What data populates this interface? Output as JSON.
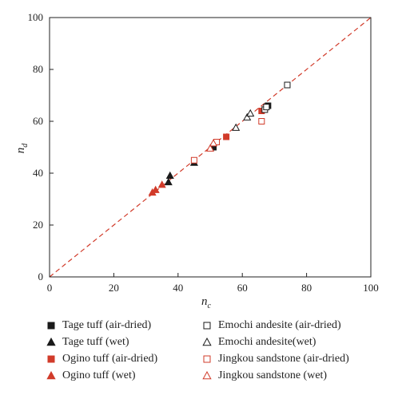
{
  "chart_data": {
    "type": "scatter",
    "xlabel": "n",
    "xlabel_sub": "c",
    "ylabel": "n",
    "ylabel_sub": "d",
    "xlim": [
      0,
      100
    ],
    "ylim": [
      0,
      100
    ],
    "x_ticks": [
      "0",
      "20",
      "40",
      "60",
      "80",
      "100"
    ],
    "y_ticks": [
      "0",
      "20",
      "40",
      "60",
      "80",
      "100"
    ],
    "grid": false,
    "reference_line": {
      "from": [
        0,
        0
      ],
      "to": [
        100,
        100
      ],
      "style": "dashed",
      "color": "#d13b2a"
    },
    "legend_position": "bottom",
    "series": [
      {
        "name": "Tage tuff (air-dried)",
        "marker": "square",
        "filled": true,
        "color": "#1a1a1a",
        "points": [
          [
            51,
            50
          ],
          [
            68,
            66
          ]
        ]
      },
      {
        "name": "Tage tuff (wet)",
        "marker": "triangle",
        "filled": true,
        "color": "#1a1a1a",
        "points": [
          [
            45,
            44
          ],
          [
            37,
            36.5
          ],
          [
            37.5,
            39
          ]
        ]
      },
      {
        "name": "Ogino tuff (air-dried)",
        "marker": "square",
        "filled": true,
        "color": "#d13b2a",
        "points": [
          [
            55,
            54
          ],
          [
            66,
            64
          ]
        ]
      },
      {
        "name": "Ogino tuff (wet)",
        "marker": "triangle",
        "filled": true,
        "color": "#d13b2a",
        "points": [
          [
            32,
            32.5
          ],
          [
            33,
            33.5
          ],
          [
            35,
            35.5
          ]
        ]
      },
      {
        "name": "Emochi andesite (air-dried)",
        "marker": "square",
        "filled": false,
        "color": "#1a1a1a",
        "points": [
          [
            74,
            74
          ],
          [
            67,
            64.5
          ],
          [
            67.5,
            65.5
          ]
        ]
      },
      {
        "name": "Emochi andesite(wet)",
        "marker": "triangle",
        "filled": false,
        "color": "#1a1a1a",
        "points": [
          [
            58,
            57.5
          ],
          [
            61.5,
            61.5
          ],
          [
            62.5,
            63
          ]
        ]
      },
      {
        "name": "Jingkou sandstone (air-dried)",
        "marker": "square",
        "filled": false,
        "color": "#d13b2a",
        "points": [
          [
            45,
            45
          ],
          [
            52,
            52
          ],
          [
            66,
            60
          ]
        ]
      },
      {
        "name": "Jingkou sandstone (wet)",
        "marker": "triangle",
        "filled": false,
        "color": "#d13b2a",
        "points": [
          [
            50,
            49.5
          ],
          [
            51,
            51.5
          ]
        ]
      }
    ]
  }
}
